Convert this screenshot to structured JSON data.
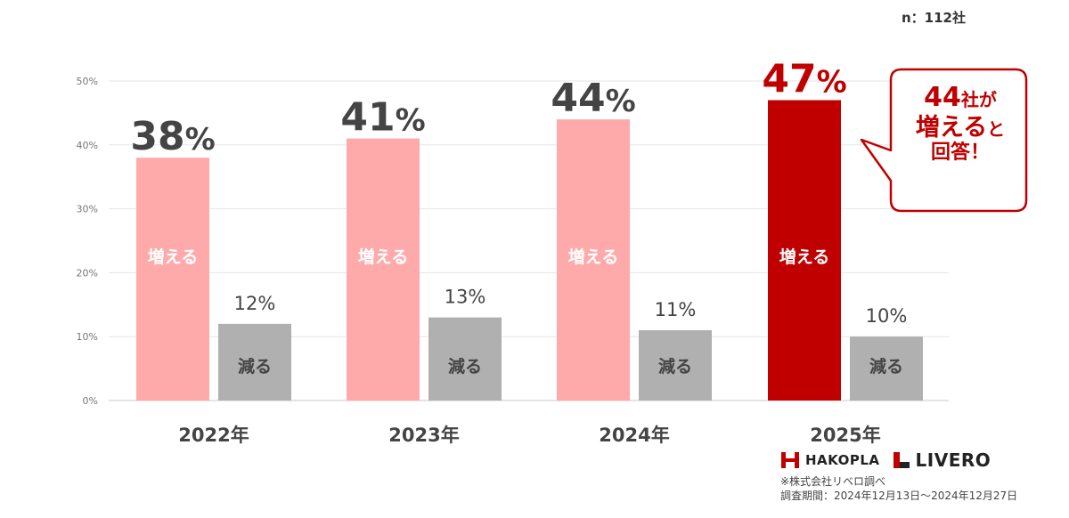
{
  "sample_note": "n：112社",
  "chart_data": {
    "type": "bar",
    "categories": [
      "2022年",
      "2023年",
      "2024年",
      "2025年"
    ],
    "series": [
      {
        "name": "増える",
        "values": [
          38,
          41,
          44,
          47
        ]
      },
      {
        "name": "減る",
        "values": [
          12,
          13,
          11,
          10
        ]
      }
    ],
    "value_labels": {
      "increase": [
        "38%",
        "41%",
        "44%",
        "47%"
      ],
      "decrease": [
        "12%",
        "13%",
        "11%",
        "10%"
      ]
    },
    "ylim": [
      0,
      50
    ],
    "yticks": [
      0,
      10,
      20,
      30,
      40,
      50
    ],
    "ytick_labels": [
      "0%",
      "10%",
      "20%",
      "30%",
      "40%",
      "50%"
    ],
    "grid": true,
    "colors": {
      "increase": "#ffaaaa",
      "increase_highlight": "#c00000",
      "decrease": "#b0b0b0"
    }
  },
  "callout": {
    "count": "44",
    "unit": "社が",
    "verb": "増える",
    "particle": "と",
    "end": "回答！"
  },
  "logos": {
    "hakopla": "HAKOPLA",
    "livero": "LIVERO"
  },
  "source": {
    "line1": "※株式会社リベロ調べ",
    "line2": "調査期間：2024年12月13日～2024年12月27日"
  }
}
